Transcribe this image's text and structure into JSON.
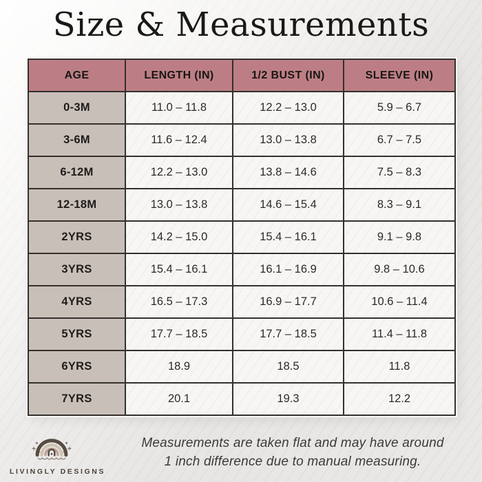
{
  "page": {
    "title": "Size & Measurements"
  },
  "colors": {
    "header_bg": "#bc7e84",
    "age_col_bg": "#c9bfb9",
    "border_color": "#33302d",
    "title_color": "#1a1918"
  },
  "chart_data": {
    "type": "table",
    "title": "Size & Measurements",
    "columns": [
      "AGE",
      "LENGTH (IN)",
      "1/2 BUST (IN)",
      "SLEEVE (IN)"
    ],
    "rows": [
      [
        "0-3M",
        "11.0 – 11.8",
        "12.2 – 13.0",
        "5.9 – 6.7"
      ],
      [
        "3-6M",
        "11.6 – 12.4",
        "13.0 – 13.8",
        "6.7 – 7.5"
      ],
      [
        "6-12M",
        "12.2 – 13.0",
        "13.8 – 14.6",
        "7.5 – 8.3"
      ],
      [
        "12-18M",
        "13.0 – 13.8",
        "14.6 – 15.4",
        "8.3 – 9.1"
      ],
      [
        "2YRS",
        "14.2 – 15.0",
        "15.4 – 16.1",
        "9.1 – 9.8"
      ],
      [
        "3YRS",
        "15.4 – 16.1",
        "16.1 – 16.9",
        "9.8 – 10.6"
      ],
      [
        "4YRS",
        "16.5 – 17.3",
        "16.9 – 17.7",
        "10.6 – 11.4"
      ],
      [
        "5YRS",
        "17.7 – 18.5",
        "17.7 – 18.5",
        "11.4 – 11.8"
      ],
      [
        "6YRS",
        "18.9",
        "18.5",
        "11.8"
      ],
      [
        "7YRS",
        "20.1",
        "19.3",
        "12.2"
      ]
    ]
  },
  "footer": {
    "note_line1": "Measurements are taken flat and may have around",
    "note_line2": "1 inch difference due to manual measuring.",
    "brand": "LIVINGLY DESIGNS",
    "logo": "boho-rainbow-icon"
  }
}
